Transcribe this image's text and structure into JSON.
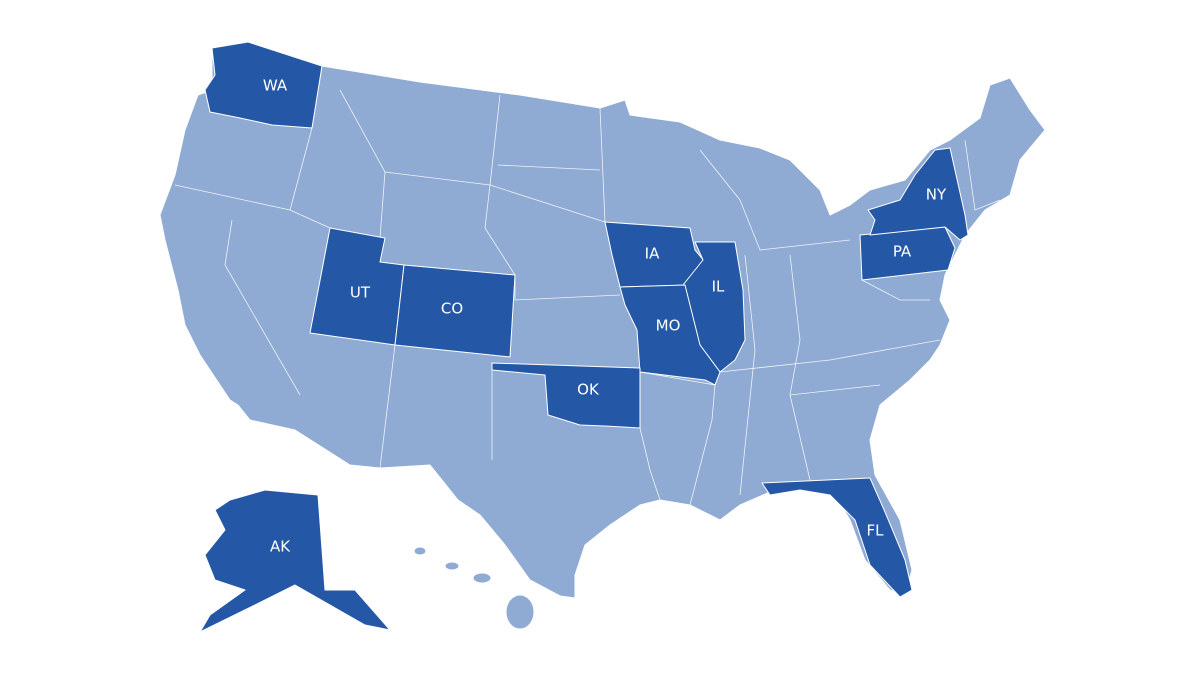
{
  "states": [
    "WA",
    "UT",
    "CO",
    "IA",
    "IL",
    "MO",
    "OK",
    "PA",
    "NY",
    "FL",
    "AK"
  ]
}
